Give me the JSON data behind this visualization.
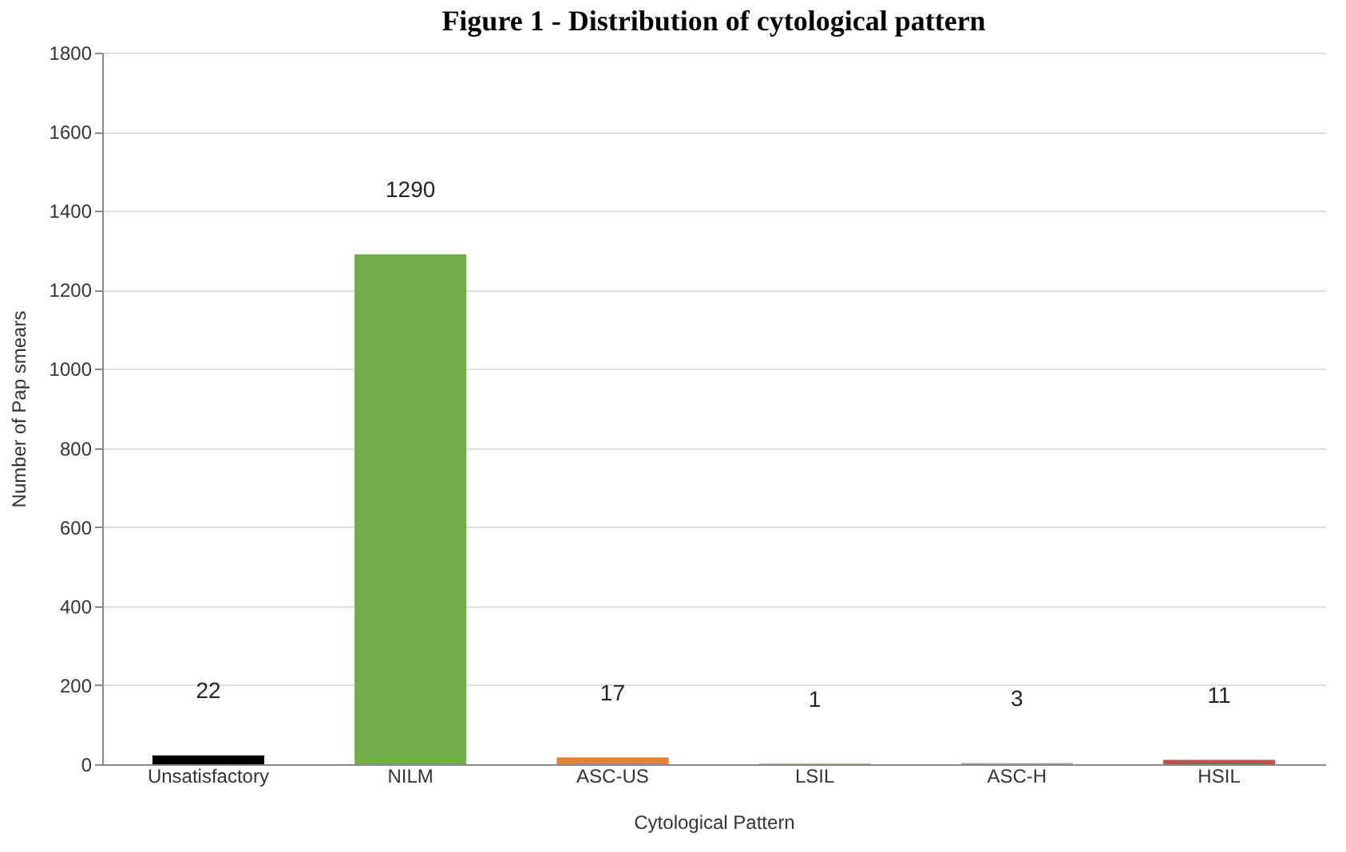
{
  "chart_data": {
    "type": "bar",
    "title": "Figure 1 - Distribution of cytological pattern",
    "xlabel": "Cytological Pattern",
    "ylabel": "Number of Pap smears",
    "categories": [
      "Unsatisfactory",
      "NILM",
      "ASC-US",
      "LSIL",
      "ASC-H",
      "HSIL"
    ],
    "values": [
      22,
      1290,
      17,
      1,
      3,
      11
    ],
    "colors": [
      "#000000",
      "#70ad47",
      "#ed7d31",
      "#4472c4",
      "#a5a5a5",
      "#c0504d"
    ],
    "ylim": [
      0,
      1800
    ],
    "yticks": [
      0,
      200,
      400,
      600,
      800,
      1000,
      1200,
      1400,
      1600,
      1800
    ],
    "grid": "y",
    "data_labels": true
  }
}
